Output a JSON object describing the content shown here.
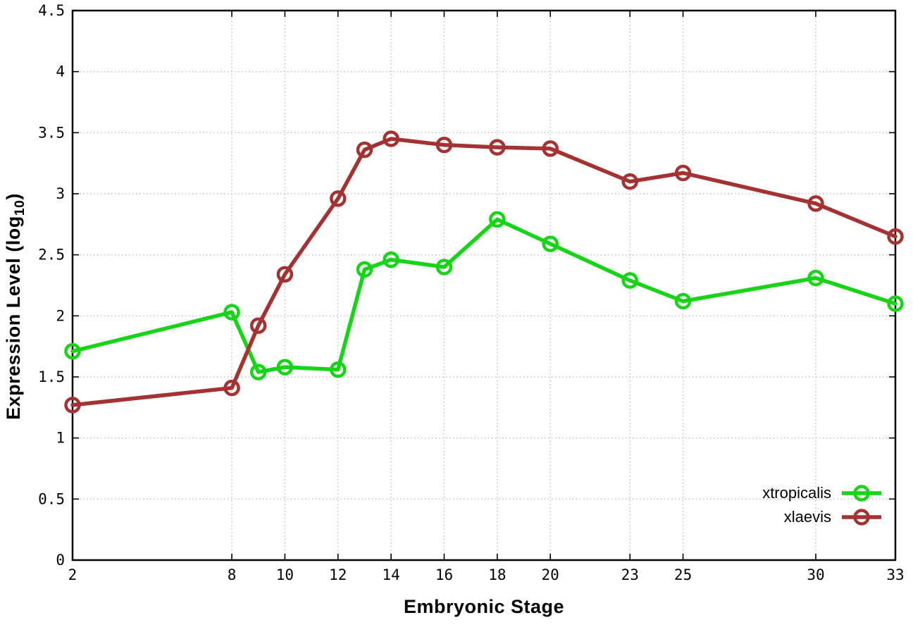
{
  "chart_data": {
    "type": "line",
    "title": "",
    "xlabel": "Embryonic Stage",
    "ylabel": "Expression Level (log10)",
    "ylabel_parts": {
      "main": "Expression Level (log",
      "sub": "10",
      "end": ")"
    },
    "x": [
      2,
      8,
      9,
      10,
      12,
      13,
      14,
      16,
      18,
      20,
      23,
      25,
      30,
      33
    ],
    "series": [
      {
        "name": "xtropicalis",
        "color": "#16d416",
        "values": [
          1.71,
          2.03,
          1.54,
          1.58,
          1.56,
          2.38,
          2.46,
          2.4,
          2.79,
          2.59,
          2.29,
          2.12,
          2.31,
          2.1
        ]
      },
      {
        "name": "xlaevis",
        "color": "#a53232",
        "values": [
          1.27,
          1.41,
          1.92,
          2.34,
          2.96,
          3.36,
          3.45,
          3.4,
          3.38,
          3.37,
          3.1,
          3.17,
          2.92,
          2.65
        ]
      }
    ],
    "xlim": [
      2,
      33
    ],
    "ylim": [
      0,
      4.5
    ],
    "xticks": [
      2,
      8,
      10,
      12,
      14,
      16,
      18,
      20,
      23,
      25,
      30,
      33
    ],
    "yticks": [
      0,
      0.5,
      1,
      1.5,
      2,
      2.5,
      3,
      3.5,
      4,
      4.5
    ],
    "ytick_labels": [
      "0",
      "0.5",
      "1",
      "1.5",
      "2",
      "2.5",
      "3",
      "3.5",
      "4",
      "4.5"
    ],
    "grid": true,
    "grid_style": "dotted",
    "grid_color": "#bdbdbd",
    "axis_color": "#000000",
    "background_color": "#ffffff",
    "marker": "open-circle",
    "legend_position": "inside-bottom-right"
  }
}
